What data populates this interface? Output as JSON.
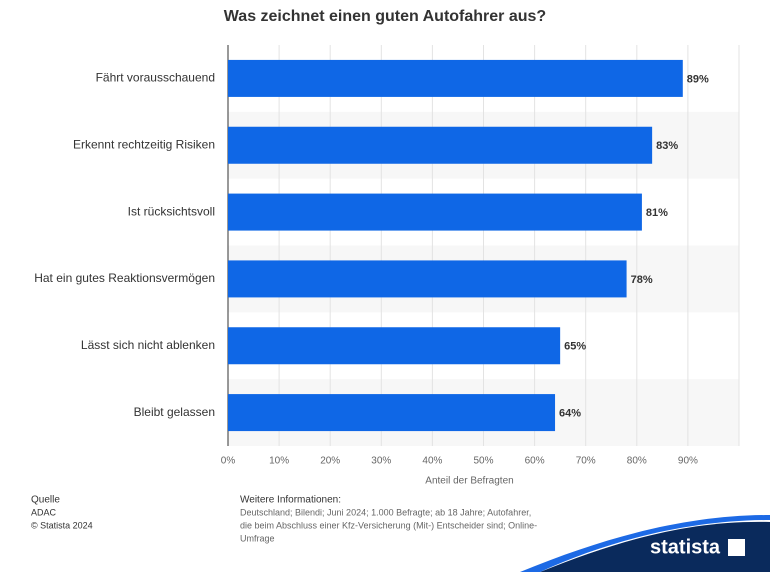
{
  "chart_data": {
    "type": "bar",
    "orientation": "horizontal",
    "title": "Was zeichnet einen guten Autofahrer aus?",
    "categories": [
      "Fährt vorausschauend",
      "Erkennt rechtzeitig Risiken",
      "Ist rücksichtsvoll",
      "Hat ein gutes Reaktionsvermögen",
      "Lässt sich nicht ablenken",
      "Bleibt gelassen"
    ],
    "values": [
      89,
      83,
      81,
      78,
      65,
      64
    ],
    "value_labels": [
      "89%",
      "83%",
      "81%",
      "78%",
      "65%",
      "64%"
    ],
    "color": "#0f67e6",
    "xlim": [
      0,
      100
    ],
    "xticks": [
      {
        "value": 0,
        "label": "0%"
      },
      {
        "value": 10,
        "label": "10%"
      },
      {
        "value": 20,
        "label": "20%"
      },
      {
        "value": 30,
        "label": "30%"
      },
      {
        "value": 40,
        "label": "40%"
      },
      {
        "value": 50,
        "label": "50%"
      },
      {
        "value": 60,
        "label": "60%"
      },
      {
        "value": 70,
        "label": "70%"
      },
      {
        "value": 80,
        "label": "80%"
      },
      {
        "value": 90,
        "label": "90%"
      }
    ],
    "xlabel": "Anteil der Befragten",
    "grid": true
  },
  "footer": {
    "source_title": "Quelle",
    "source": "ADAC",
    "copyright": "© Statista 2024",
    "info_title": "Weitere Informationen:",
    "info_lines": [
      "Deutschland; Bilendi; Juni 2024; 1.000 Befragte; ab 18 Jahre; Autofahrer,",
      "die beim Abschluss einer Kfz-Versicherung (Mit-) Entscheider sind; Online-",
      "Umfrage"
    ],
    "logo": "statista"
  }
}
